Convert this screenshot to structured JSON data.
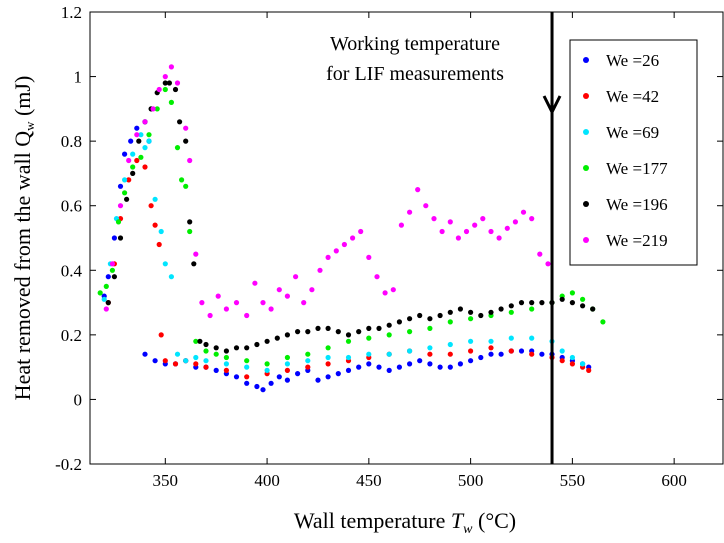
{
  "chart_data": {
    "type": "scatter",
    "xlabel_prefix": "Wall temperature ",
    "xlabel_var": "T",
    "xlabel_sub": "w",
    "xlabel_suffix": " (°C)",
    "ylabel_prefix": "Heat removed from the wall Q",
    "ylabel_sub": "w",
    "ylabel_suffix": " (mJ)",
    "xlim": [
      313,
      624
    ],
    "ylim": [
      -0.2,
      1.2
    ],
    "x_ticks": [
      350,
      400,
      450,
      500,
      550,
      600
    ],
    "y_ticks": [
      -0.2,
      0,
      0.2,
      0.4,
      0.6,
      0.8,
      1,
      1.2
    ],
    "y_tick_labels": [
      "-0.2",
      "0",
      "0.2",
      "0.4",
      "0.6",
      "0.8",
      "1",
      "1.2"
    ],
    "grid": false,
    "legend_position": "top-right",
    "annotation": {
      "line1": "Working temperature",
      "line2": "for LIF measurements",
      "x_value": 540
    },
    "series": [
      {
        "name": "We =26",
        "color": "#0000ff",
        "points": [
          [
            320,
            0.32
          ],
          [
            322,
            0.38
          ],
          [
            325,
            0.5
          ],
          [
            328,
            0.66
          ],
          [
            330,
            0.76
          ],
          [
            333,
            0.8
          ],
          [
            336,
            0.84
          ],
          [
            340,
            0.86
          ],
          [
            342,
            0.8
          ],
          [
            340,
            0.14
          ],
          [
            345,
            0.12
          ],
          [
            350,
            0.11
          ],
          [
            355,
            0.11
          ],
          [
            360,
            0.12
          ],
          [
            365,
            0.1
          ],
          [
            370,
            0.1
          ],
          [
            375,
            0.09
          ],
          [
            380,
            0.08
          ],
          [
            385,
            0.07
          ],
          [
            390,
            0.05
          ],
          [
            395,
            0.04
          ],
          [
            398,
            0.03
          ],
          [
            402,
            0.05
          ],
          [
            406,
            0.07
          ],
          [
            410,
            0.06
          ],
          [
            415,
            0.08
          ],
          [
            420,
            0.09
          ],
          [
            425,
            0.06
          ],
          [
            430,
            0.07
          ],
          [
            435,
            0.08
          ],
          [
            440,
            0.09
          ],
          [
            445,
            0.1
          ],
          [
            450,
            0.11
          ],
          [
            455,
            0.1
          ],
          [
            460,
            0.09
          ],
          [
            465,
            0.1
          ],
          [
            470,
            0.11
          ],
          [
            475,
            0.12
          ],
          [
            480,
            0.11
          ],
          [
            485,
            0.1
          ],
          [
            490,
            0.1
          ],
          [
            495,
            0.11
          ],
          [
            500,
            0.12
          ],
          [
            505,
            0.13
          ],
          [
            510,
            0.14
          ],
          [
            515,
            0.14
          ],
          [
            520,
            0.15
          ],
          [
            525,
            0.15
          ],
          [
            530,
            0.15
          ],
          [
            535,
            0.14
          ],
          [
            540,
            0.14
          ],
          [
            545,
            0.13
          ],
          [
            550,
            0.12
          ],
          [
            555,
            0.11
          ],
          [
            558,
            0.1
          ]
        ]
      },
      {
        "name": "We =42",
        "color": "#ff0000",
        "points": [
          [
            322,
            0.3
          ],
          [
            325,
            0.42
          ],
          [
            328,
            0.56
          ],
          [
            332,
            0.68
          ],
          [
            336,
            0.74
          ],
          [
            340,
            0.72
          ],
          [
            343,
            0.6
          ],
          [
            345,
            0.54
          ],
          [
            347,
            0.48
          ],
          [
            348,
            0.2
          ],
          [
            350,
            0.12
          ],
          [
            355,
            0.11
          ],
          [
            360,
            0.12
          ],
          [
            365,
            0.11
          ],
          [
            370,
            0.1
          ],
          [
            380,
            0.09
          ],
          [
            390,
            0.07
          ],
          [
            400,
            0.08
          ],
          [
            410,
            0.09
          ],
          [
            420,
            0.1
          ],
          [
            430,
            0.11
          ],
          [
            440,
            0.12
          ],
          [
            450,
            0.13
          ],
          [
            460,
            0.14
          ],
          [
            470,
            0.15
          ],
          [
            480,
            0.14
          ],
          [
            490,
            0.14
          ],
          [
            500,
            0.15
          ],
          [
            510,
            0.16
          ],
          [
            520,
            0.15
          ],
          [
            530,
            0.14
          ],
          [
            540,
            0.13
          ],
          [
            545,
            0.12
          ],
          [
            550,
            0.11
          ],
          [
            555,
            0.1
          ],
          [
            558,
            0.09
          ]
        ]
      },
      {
        "name": "We =69",
        "color": "#00e5ff",
        "points": [
          [
            320,
            0.31
          ],
          [
            323,
            0.42
          ],
          [
            326,
            0.56
          ],
          [
            330,
            0.68
          ],
          [
            334,
            0.76
          ],
          [
            338,
            0.82
          ],
          [
            340,
            0.78
          ],
          [
            342,
            0.8
          ],
          [
            345,
            0.62
          ],
          [
            348,
            0.52
          ],
          [
            350,
            0.42
          ],
          [
            353,
            0.38
          ],
          [
            356,
            0.14
          ],
          [
            360,
            0.12
          ],
          [
            365,
            0.13
          ],
          [
            370,
            0.12
          ],
          [
            380,
            0.11
          ],
          [
            390,
            0.1
          ],
          [
            400,
            0.09
          ],
          [
            410,
            0.11
          ],
          [
            420,
            0.12
          ],
          [
            430,
            0.13
          ],
          [
            440,
            0.13
          ],
          [
            450,
            0.14
          ],
          [
            460,
            0.14
          ],
          [
            470,
            0.15
          ],
          [
            480,
            0.16
          ],
          [
            490,
            0.17
          ],
          [
            500,
            0.18
          ],
          [
            510,
            0.18
          ],
          [
            520,
            0.19
          ],
          [
            530,
            0.19
          ],
          [
            540,
            0.18
          ],
          [
            545,
            0.15
          ],
          [
            550,
            0.13
          ],
          [
            555,
            0.11
          ]
        ]
      },
      {
        "name": "We =177",
        "color": "#00ee00",
        "points": [
          [
            318,
            0.33
          ],
          [
            321,
            0.35
          ],
          [
            324,
            0.4
          ],
          [
            327,
            0.55
          ],
          [
            330,
            0.64
          ],
          [
            334,
            0.72
          ],
          [
            338,
            0.75
          ],
          [
            342,
            0.82
          ],
          [
            346,
            0.9
          ],
          [
            350,
            0.96
          ],
          [
            353,
            0.92
          ],
          [
            356,
            0.78
          ],
          [
            358,
            0.68
          ],
          [
            360,
            0.66
          ],
          [
            362,
            0.52
          ],
          [
            365,
            0.18
          ],
          [
            370,
            0.15
          ],
          [
            375,
            0.14
          ],
          [
            380,
            0.13
          ],
          [
            390,
            0.12
          ],
          [
            400,
            0.11
          ],
          [
            410,
            0.13
          ],
          [
            420,
            0.14
          ],
          [
            430,
            0.16
          ],
          [
            440,
            0.18
          ],
          [
            450,
            0.19
          ],
          [
            460,
            0.2
          ],
          [
            470,
            0.21
          ],
          [
            480,
            0.22
          ],
          [
            490,
            0.24
          ],
          [
            500,
            0.25
          ],
          [
            510,
            0.26
          ],
          [
            520,
            0.27
          ],
          [
            530,
            0.28
          ],
          [
            540,
            0.3
          ],
          [
            545,
            0.32
          ],
          [
            550,
            0.33
          ],
          [
            555,
            0.31
          ],
          [
            560,
            0.28
          ],
          [
            565,
            0.24
          ]
        ]
      },
      {
        "name": "We =196",
        "color": "#000000",
        "points": [
          [
            322,
            0.3
          ],
          [
            325,
            0.38
          ],
          [
            328,
            0.5
          ],
          [
            331,
            0.62
          ],
          [
            334,
            0.7
          ],
          [
            337,
            0.8
          ],
          [
            340,
            0.86
          ],
          [
            343,
            0.9
          ],
          [
            346,
            0.95
          ],
          [
            350,
            0.98
          ],
          [
            352,
            0.98
          ],
          [
            355,
            0.96
          ],
          [
            357,
            0.86
          ],
          [
            360,
            0.8
          ],
          [
            362,
            0.55
          ],
          [
            364,
            0.42
          ],
          [
            367,
            0.18
          ],
          [
            370,
            0.17
          ],
          [
            375,
            0.16
          ],
          [
            380,
            0.15
          ],
          [
            385,
            0.16
          ],
          [
            390,
            0.16
          ],
          [
            395,
            0.17
          ],
          [
            400,
            0.18
          ],
          [
            405,
            0.19
          ],
          [
            410,
            0.2
          ],
          [
            415,
            0.21
          ],
          [
            420,
            0.21
          ],
          [
            425,
            0.22
          ],
          [
            430,
            0.22
          ],
          [
            435,
            0.21
          ],
          [
            440,
            0.2
          ],
          [
            445,
            0.21
          ],
          [
            450,
            0.22
          ],
          [
            455,
            0.22
          ],
          [
            460,
            0.23
          ],
          [
            465,
            0.24
          ],
          [
            470,
            0.25
          ],
          [
            475,
            0.26
          ],
          [
            480,
            0.25
          ],
          [
            485,
            0.26
          ],
          [
            490,
            0.27
          ],
          [
            495,
            0.28
          ],
          [
            500,
            0.27
          ],
          [
            505,
            0.26
          ],
          [
            510,
            0.27
          ],
          [
            515,
            0.28
          ],
          [
            520,
            0.29
          ],
          [
            525,
            0.3
          ],
          [
            530,
            0.3
          ],
          [
            535,
            0.3
          ],
          [
            540,
            0.3
          ],
          [
            545,
            0.31
          ],
          [
            550,
            0.3
          ],
          [
            555,
            0.29
          ],
          [
            560,
            0.28
          ]
        ]
      },
      {
        "name": "We =219",
        "color": "#ff00ff",
        "points": [
          [
            321,
            0.28
          ],
          [
            324,
            0.42
          ],
          [
            328,
            0.6
          ],
          [
            332,
            0.74
          ],
          [
            336,
            0.82
          ],
          [
            340,
            0.86
          ],
          [
            344,
            0.9
          ],
          [
            347,
            0.96
          ],
          [
            350,
            1.0
          ],
          [
            353,
            1.03
          ],
          [
            356,
            0.98
          ],
          [
            360,
            0.84
          ],
          [
            362,
            0.74
          ],
          [
            365,
            0.45
          ],
          [
            368,
            0.3
          ],
          [
            372,
            0.26
          ],
          [
            376,
            0.32
          ],
          [
            380,
            0.28
          ],
          [
            385,
            0.3
          ],
          [
            390,
            0.26
          ],
          [
            394,
            0.36
          ],
          [
            398,
            0.3
          ],
          [
            402,
            0.28
          ],
          [
            406,
            0.34
          ],
          [
            410,
            0.32
          ],
          [
            414,
            0.38
          ],
          [
            418,
            0.3
          ],
          [
            422,
            0.34
          ],
          [
            426,
            0.4
          ],
          [
            430,
            0.44
          ],
          [
            434,
            0.46
          ],
          [
            438,
            0.48
          ],
          [
            442,
            0.5
          ],
          [
            446,
            0.52
          ],
          [
            450,
            0.44
          ],
          [
            454,
            0.38
          ],
          [
            458,
            0.33
          ],
          [
            462,
            0.34
          ],
          [
            466,
            0.54
          ],
          [
            470,
            0.58
          ],
          [
            474,
            0.65
          ],
          [
            478,
            0.6
          ],
          [
            482,
            0.56
          ],
          [
            486,
            0.52
          ],
          [
            490,
            0.55
          ],
          [
            494,
            0.5
          ],
          [
            498,
            0.52
          ],
          [
            502,
            0.54
          ],
          [
            506,
            0.56
          ],
          [
            510,
            0.52
          ],
          [
            514,
            0.5
          ],
          [
            518,
            0.53
          ],
          [
            522,
            0.55
          ],
          [
            526,
            0.58
          ],
          [
            530,
            0.56
          ],
          [
            534,
            0.45
          ],
          [
            538,
            0.42
          ]
        ]
      }
    ]
  }
}
